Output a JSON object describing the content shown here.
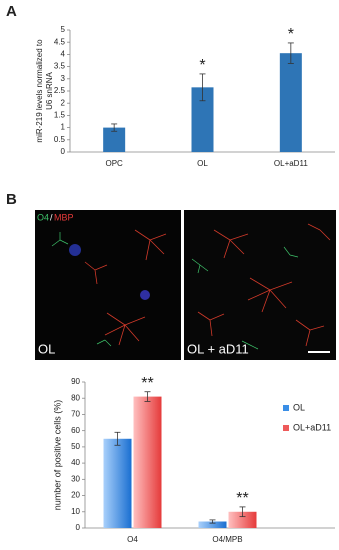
{
  "panel_labels": [
    "A",
    "B"
  ],
  "image": {
    "stain_labels": [
      "O4",
      "/",
      "MBP"
    ],
    "captions": [
      "OL",
      "OL + aD11"
    ]
  },
  "chart_data": [
    {
      "type": "bar",
      "ylabel": [
        "miR-219 levels normalized to",
        "U6 snRNA"
      ],
      "categories": [
        "OPC",
        "OL",
        "OL+aD11"
      ],
      "values": [
        1.0,
        2.65,
        4.05
      ],
      "errors": [
        0.15,
        0.55,
        0.42
      ],
      "bar_annotations": [
        null,
        "*",
        "*"
      ],
      "color": "#2e75b6",
      "ylim": [
        0,
        5
      ],
      "yticks": [
        0,
        0.5,
        1,
        1.5,
        2,
        2.5,
        3,
        3.5,
        4,
        4.5,
        5
      ],
      "grid": false
    },
    {
      "type": "bar",
      "ylabel": "number of positive cells (%)",
      "categories": [
        "O4",
        "O4/MPB"
      ],
      "series": [
        {
          "name": "OL",
          "color": "#3a8ee6",
          "values": [
            55,
            4
          ],
          "errors": [
            4,
            1
          ],
          "annotations": [
            null,
            null
          ]
        },
        {
          "name": "OL+aD11",
          "color": "#ee5a5a",
          "values": [
            81,
            10
          ],
          "errors": [
            3,
            3
          ],
          "annotations": [
            "**",
            "**"
          ]
        }
      ],
      "ylim": [
        0,
        90
      ],
      "yticks": [
        0,
        10,
        20,
        30,
        40,
        50,
        60,
        70,
        80,
        90
      ],
      "grid": false,
      "legend": "right"
    }
  ]
}
